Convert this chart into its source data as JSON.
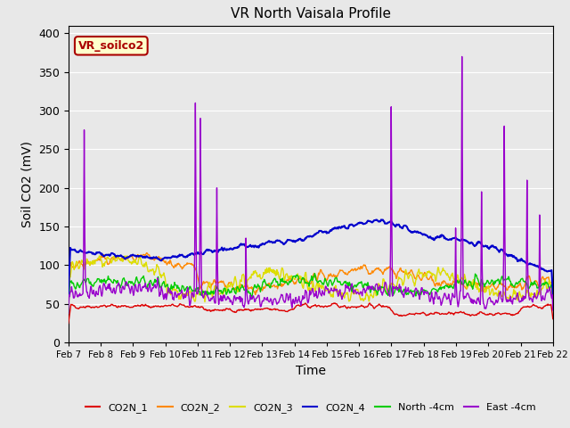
{
  "title": "VR North Vaisala Profile",
  "ylabel": "Soil CO2 (mV)",
  "xlabel": "Time",
  "ylim": [
    0,
    410
  ],
  "yticks": [
    0,
    50,
    100,
    150,
    200,
    250,
    300,
    350,
    400
  ],
  "x_tick_labels": [
    "Feb 7",
    "Feb 8",
    "Feb 9",
    "Feb 10",
    "Feb 11",
    "Feb 12",
    "Feb 13",
    "Feb 14",
    "Feb 15",
    "Feb 16",
    "Feb 17",
    "Feb 18",
    "Feb 19",
    "Feb 20",
    "Feb 21",
    "Feb 22"
  ],
  "series_colors": {
    "CO2N_1": "#dd0000",
    "CO2N_2": "#ff8800",
    "CO2N_3": "#dddd00",
    "CO2N_4": "#0000cc",
    "North_4cm": "#00cc00",
    "East_4cm": "#9900cc"
  },
  "annotation_text": "VR_soilco2",
  "annotation_bg": "#ffffcc",
  "annotation_border": "#aa0000",
  "plot_bg": "#e8e8e8",
  "fig_bg": "#e8e8e8",
  "grid_color": "#ffffff"
}
